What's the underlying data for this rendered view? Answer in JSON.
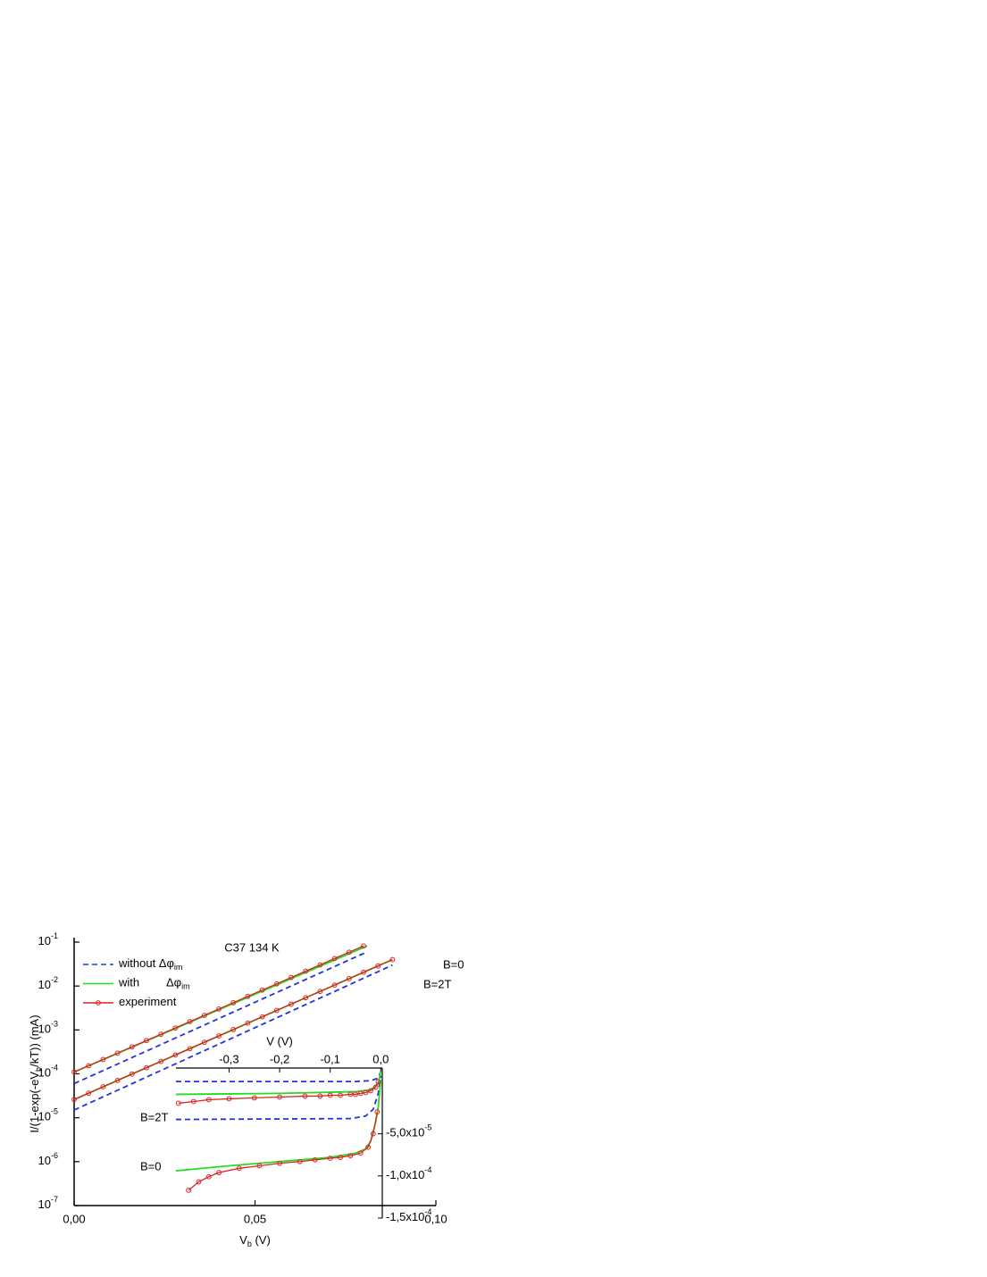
{
  "chart_data": {
    "type": "line",
    "title": "C37   134 K",
    "xlabel": {
      "text": "V",
      "sub": "b",
      "after": " (V)"
    },
    "ylabel": {
      "text": "I/(1-exp(-eV",
      "sub": "b",
      "after": "/kT)) (mA)"
    },
    "log_y": true,
    "xlim": [
      0,
      0.1
    ],
    "xticks": [
      {
        "value": 0,
        "label": "0,00"
      },
      {
        "value": 0.05,
        "label": "0,05"
      },
      {
        "value": 0.1,
        "label": "0,10"
      }
    ],
    "ylim": [
      1e-07,
      0.1
    ],
    "yticks": [
      {
        "value": 1e-07,
        "label": "10",
        "sup": "-7"
      },
      {
        "value": 1e-06,
        "label": "10",
        "sup": "-6"
      },
      {
        "value": 1e-05,
        "label": "10",
        "sup": "-5"
      },
      {
        "value": 0.0001,
        "label": "10",
        "sup": "-4"
      },
      {
        "value": 0.001,
        "label": "10",
        "sup": "-3"
      },
      {
        "value": 0.01,
        "label": "10",
        "sup": "-2"
      },
      {
        "value": 0.1,
        "label": "10",
        "sup": "-1"
      }
    ],
    "series": [
      {
        "name": "without Δφ",
        "name_sub": "im",
        "color": "#2233dd",
        "dashed": true,
        "markers": false,
        "curves": [
          {
            "x": [
              0,
              0.081
            ],
            "values": [
              6e-05,
              0.06
            ]
          },
          {
            "x": [
              0,
              0.088
            ],
            "values": [
              1.5e-05,
              0.03
            ]
          }
        ]
      },
      {
        "name": "with",
        "name_gap": "Δφ",
        "name_sub": "im",
        "color": "#22dd22",
        "dashed": false,
        "markers": false,
        "curves": [
          {
            "x": [
              0,
              0.081
            ],
            "values": [
              0.00011,
              0.082
            ]
          },
          {
            "x": [
              0,
              0.088
            ],
            "values": [
              2.6e-05,
              0.04
            ]
          }
        ]
      },
      {
        "name": "experiment",
        "color": "#dd2222",
        "dashed": false,
        "markers": true,
        "curves": [
          {
            "x": [
              0,
              0.004,
              0.008,
              0.012,
              0.016,
              0.02,
              0.024,
              0.028,
              0.032,
              0.036,
              0.04,
              0.044,
              0.048,
              0.052,
              0.056,
              0.06,
              0.064,
              0.068,
              0.072,
              0.076,
              0.08
            ],
            "values": [
              0.00011,
              0.000153,
              0.000212,
              0.000296,
              0.000412,
              0.000573,
              0.000798,
              0.00111,
              0.00155,
              0.00215,
              0.003,
              0.00417,
              0.00581,
              0.00809,
              0.0112,
              0.0157,
              0.0218,
              0.0303,
              0.0423,
              0.0589,
              0.082
            ]
          },
          {
            "x": [
              0,
              0.004,
              0.008,
              0.012,
              0.016,
              0.02,
              0.024,
              0.028,
              0.032,
              0.036,
              0.04,
              0.044,
              0.048,
              0.052,
              0.056,
              0.06,
              0.064,
              0.068,
              0.072,
              0.076,
              0.08,
              0.084,
              0.088
            ],
            "values": [
              2.6e-05,
              3.63e-05,
              5.07e-05,
              7.08e-05,
              9.89e-05,
              0.000138,
              0.000192,
              0.000269,
              0.000375,
              0.000524,
              0.000731,
              0.00102,
              0.00143,
              0.00199,
              0.00278,
              0.00387,
              0.00541,
              0.00755,
              0.0105,
              0.0147,
              0.0206,
              0.0287,
              0.04
            ]
          }
        ]
      }
    ],
    "annotations": [
      "B=0",
      "B=2T"
    ],
    "inset": {
      "xlabel": "V (V)",
      "xlim": [
        -0.405,
        0.003
      ],
      "xticks": [
        {
          "value": -0.3,
          "label": "-0,3"
        },
        {
          "value": -0.2,
          "label": "-0,2"
        },
        {
          "value": -0.1,
          "label": "-0,1"
        },
        {
          "value": 0,
          "label": "0,0"
        }
      ],
      "ylim": [
        -0.00015,
        2.8e-05
      ],
      "yticks": [
        {
          "value": -5e-05,
          "label": "-5,0x10",
          "sup": "-5"
        },
        {
          "value": -0.0001,
          "label": "-1,0x10",
          "sup": "-4"
        },
        {
          "value": -0.00015,
          "label": "-1,5x10",
          "sup": "-4"
        }
      ],
      "annotations": [
        "B=2T",
        "B=0"
      ],
      "series": [
        {
          "color": "#2233dd",
          "dashed": true,
          "markers": false,
          "curves": [
            {
              "x": [
                -0.405,
                -0.05,
                -0.02,
                -0.005,
                0
              ],
              "values": [
                1.2e-05,
                1.2e-05,
                1.3e-05,
                1.6e-05,
                2.4e-05
              ]
            },
            {
              "x": [
                -0.405,
                -0.06,
                -0.03,
                -0.015,
                -0.005,
                0
              ],
              "values": [
                -3.3e-05,
                -3.2e-05,
                -2.9e-05,
                -2.1e-05,
                -2.1e-06,
                1.9e-05
              ]
            }
          ]
        },
        {
          "color": "#22dd22",
          "dashed": false,
          "markers": false,
          "curves": [
            {
              "x": [
                -0.405,
                -0.2,
                -0.05,
                -0.02,
                -0.005,
                0
              ],
              "values": [
                -3.2e-06,
                -2.1e-06,
                0,
                2.1e-06,
                9.6e-06,
                2.4e-05
              ]
            },
            {
              "x": [
                -0.405,
                -0.3,
                -0.2,
                -0.1,
                -0.05,
                -0.03,
                -0.02,
                -0.01,
                -0.005,
                0
              ],
              "values": [
                -9.4e-05,
                -8.8e-05,
                -8.3e-05,
                -7.8e-05,
                -7.3e-05,
                -6.8e-05,
                -5.9e-05,
                -3.6e-05,
                -1.8e-05,
                1.4e-05
              ]
            }
          ]
        },
        {
          "color": "#dd2222",
          "dashed": false,
          "markers": true,
          "curves": [
            {
              "x": [
                -0.4,
                -0.37,
                -0.34,
                -0.3,
                -0.25,
                -0.2,
                -0.15,
                -0.12,
                -0.1,
                -0.08,
                -0.06,
                -0.05,
                -0.04,
                -0.03,
                -0.02,
                -0.01,
                -0.005
              ],
              "values": [
                -1.38e-05,
                -1.17e-05,
                -9.6e-06,
                -8.5e-06,
                -7.4e-06,
                -6.4e-06,
                -5.3e-06,
                -5.3e-06,
                -4.3e-06,
                -4.3e-06,
                -3.2e-06,
                -3.2e-06,
                -2.1e-06,
                -1.1e-06,
                1.1e-06,
                5.3e-06,
                1.17e-05
              ]
            },
            {
              "x": [
                -0.38,
                -0.36,
                -0.34,
                -0.32,
                -0.28,
                -0.24,
                -0.2,
                -0.16,
                -0.13,
                -0.1,
                -0.08,
                -0.06,
                -0.04,
                -0.025,
                -0.015,
                -0.007
              ],
              "values": [
                -0.000117,
                -0.000107,
                -0.000101,
                -9.6e-05,
                -9.1e-05,
                -8.8e-05,
                -8.5e-05,
                -8.3e-05,
                -8.1e-05,
                -7.9e-05,
                -7.8e-05,
                -7.6e-05,
                -7.3e-05,
                -6.6e-05,
                -5e-05,
                -2.4e-05
              ]
            }
          ]
        }
      ]
    }
  }
}
